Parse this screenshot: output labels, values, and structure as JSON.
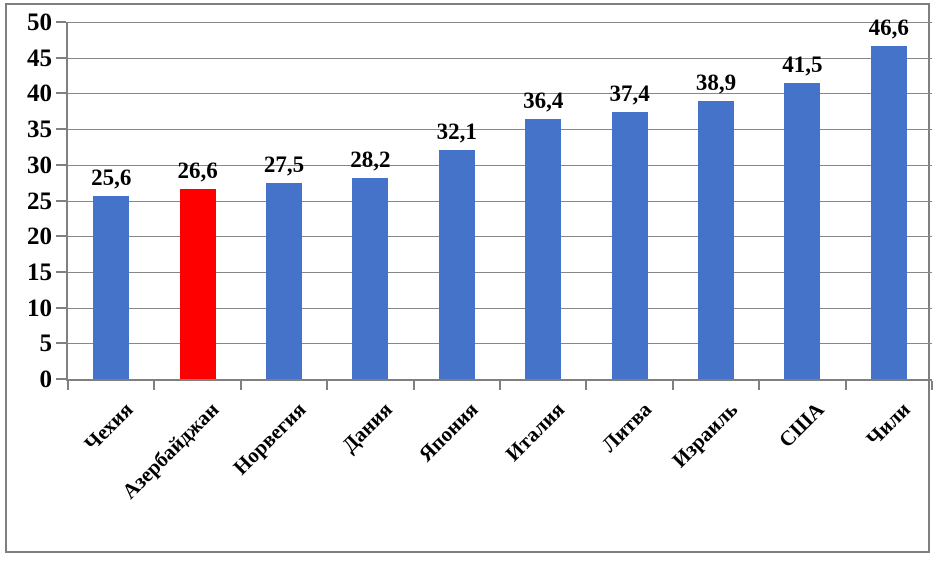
{
  "chart_data": {
    "type": "bar",
    "categories": [
      "Чехия",
      "Азербайджан",
      "Норвегия",
      "Дания",
      "Япония",
      "Италия",
      "Литва",
      "Израиль",
      "США",
      "Чили"
    ],
    "values": [
      25.6,
      26.6,
      27.5,
      28.2,
      32.1,
      36.4,
      37.4,
      38.9,
      41.5,
      46.6
    ],
    "value_labels": [
      "25,6",
      "26,6",
      "27,5",
      "28,2",
      "32,1",
      "36,4",
      "37,4",
      "38,9",
      "41,5",
      "46,6"
    ],
    "title": "",
    "xlabel": "",
    "ylabel": "",
    "ylim": [
      0,
      50
    ],
    "ytick_step": 5,
    "ytick_labels": [
      "0",
      "5",
      "10",
      "15",
      "20",
      "25",
      "30",
      "35",
      "40",
      "45",
      "50"
    ],
    "grid": "horizontal",
    "legend": "none",
    "highlight_index": 1,
    "colors": {
      "bar_default": "#4573c9",
      "bar_highlight": "#fe0000",
      "gridline": "#878787",
      "axis": "#808080",
      "frame_border": "#7f7f7f",
      "text": "#000000",
      "background": "#ffffff"
    }
  }
}
